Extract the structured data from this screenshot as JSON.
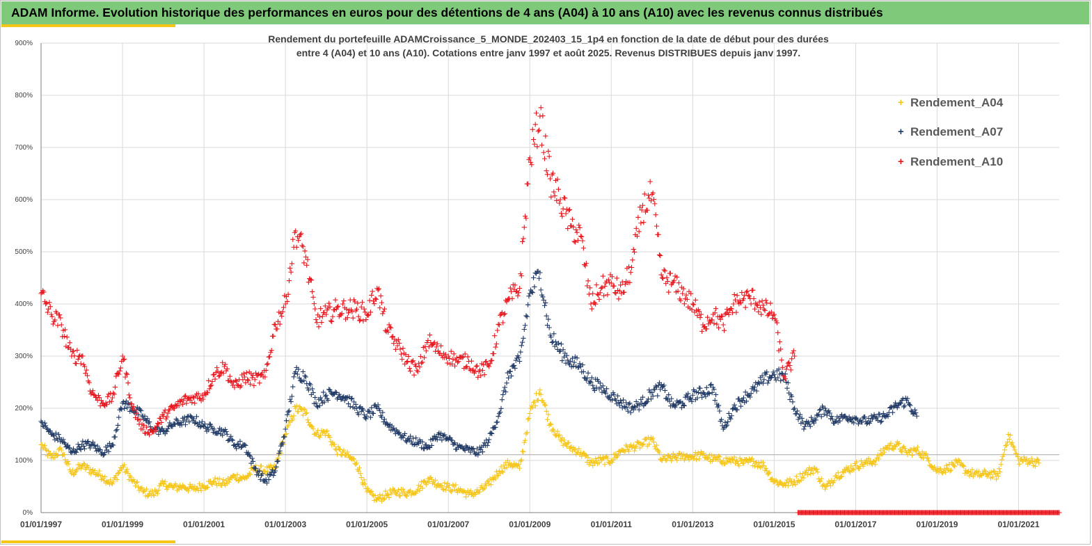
{
  "banner": {
    "text": "ADAM Informe. Evolution historique des performances en euros pour des détentions de 4 ans (A04) à 10 ans (A10) avec les revenus connus distribués"
  },
  "colors": {
    "banner_bg": "#7fc97a",
    "accent": "#f5c518",
    "A04": "#f5c518",
    "A07": "#1f3864",
    "A10": "#e8141c",
    "grid": "#d9d9d9"
  },
  "chart_data": {
    "type": "scatter",
    "title_lines": [
      "Rendement du portefeuille ADAMCroissance_5_MONDE_202403_15_1p4  en fonction de la date de début pour des durées",
      "entre 4 (A04) et 10 ans (A10). Cotations entre janv 1997 et août 2025. Revenus DISTRIBUES depuis janv 1997."
    ],
    "marker": "+",
    "xlim": [
      "1997-01-01",
      "2022-01-01"
    ],
    "x_ticks": [
      "01/01/1997",
      "01/01/1999",
      "01/01/2001",
      "01/01/2003",
      "01/01/2005",
      "01/01/2007",
      "01/01/2009",
      "01/01/2011",
      "01/01/2013",
      "01/01/2015",
      "01/01/2017",
      "01/01/2019",
      "01/01/2021"
    ],
    "ylim": [
      0,
      900
    ],
    "y_ticks": [
      "0%",
      "100%",
      "200%",
      "300%",
      "400%",
      "500%",
      "600%",
      "700%",
      "800%",
      "900%"
    ],
    "reference_line": 111,
    "legend_position": "top-right",
    "series": [
      {
        "name": "Rendement_A04",
        "x": [
          "1997-01",
          "1997-04",
          "1997-07",
          "1997-10",
          "1998-01",
          "1998-04",
          "1998-07",
          "1998-10",
          "1999-01",
          "1999-04",
          "1999-07",
          "1999-10",
          "2000-01",
          "2000-04",
          "2000-07",
          "2000-10",
          "2001-01",
          "2001-04",
          "2001-07",
          "2001-10",
          "2002-01",
          "2002-04",
          "2002-07",
          "2002-10",
          "2003-01",
          "2003-04",
          "2003-07",
          "2003-10",
          "2004-01",
          "2004-04",
          "2004-07",
          "2004-10",
          "2005-01",
          "2005-04",
          "2005-07",
          "2005-10",
          "2006-01",
          "2006-04",
          "2006-07",
          "2006-10",
          "2007-01",
          "2007-04",
          "2007-07",
          "2007-10",
          "2008-01",
          "2008-04",
          "2008-07",
          "2008-10",
          "2009-01",
          "2009-04",
          "2009-07",
          "2009-10",
          "2010-01",
          "2010-04",
          "2010-07",
          "2010-10",
          "2011-01",
          "2011-04",
          "2011-07",
          "2011-10",
          "2012-01",
          "2012-04",
          "2012-07",
          "2012-10",
          "2013-01",
          "2013-04",
          "2013-07",
          "2013-10",
          "2014-01",
          "2014-04",
          "2014-07",
          "2014-10",
          "2015-01",
          "2015-04",
          "2015-07",
          "2015-10",
          "2016-01",
          "2016-04",
          "2016-07",
          "2016-10",
          "2017-01",
          "2017-04",
          "2017-07",
          "2017-10",
          "2018-01",
          "2018-04",
          "2018-07",
          "2018-10",
          "2019-01",
          "2019-04",
          "2019-07",
          "2019-10",
          "2020-01",
          "2020-04",
          "2020-07",
          "2020-10",
          "2021-01",
          "2021-04",
          "2021-07"
        ],
        "values": [
          130,
          105,
          120,
          75,
          90,
          80,
          70,
          55,
          90,
          60,
          40,
          35,
          55,
          48,
          50,
          45,
          52,
          60,
          55,
          70,
          65,
          85,
          80,
          85,
          150,
          200,
          190,
          150,
          155,
          120,
          110,
          95,
          40,
          25,
          35,
          40,
          38,
          45,
          65,
          55,
          48,
          45,
          35,
          40,
          55,
          80,
          95,
          85,
          190,
          235,
          170,
          140,
          125,
          115,
          95,
          100,
          100,
          120,
          125,
          130,
          140,
          100,
          105,
          108,
          108,
          110,
          102,
          100,
          100,
          95,
          98,
          90,
          60,
          55,
          60,
          75,
          85,
          45,
          70,
          80,
          90,
          95,
          100,
          125,
          130,
          115,
          120,
          105,
          80,
          85,
          95,
          78,
          72,
          75,
          70,
          150,
          100,
          100,
          95
        ]
      },
      {
        "name": "Rendement_A07",
        "x": [
          "1997-01",
          "1997-04",
          "1997-07",
          "1997-10",
          "1998-01",
          "1998-04",
          "1998-07",
          "1998-10",
          "1999-01",
          "1999-04",
          "1999-07",
          "1999-10",
          "2000-01",
          "2000-04",
          "2000-07",
          "2000-10",
          "2001-01",
          "2001-04",
          "2001-07",
          "2001-10",
          "2002-01",
          "2002-04",
          "2002-07",
          "2002-10",
          "2003-01",
          "2003-04",
          "2003-07",
          "2003-10",
          "2004-01",
          "2004-04",
          "2004-07",
          "2004-10",
          "2005-01",
          "2005-04",
          "2005-07",
          "2005-10",
          "2006-01",
          "2006-04",
          "2006-07",
          "2006-10",
          "2007-01",
          "2007-04",
          "2007-07",
          "2007-10",
          "2008-01",
          "2008-04",
          "2008-07",
          "2008-10",
          "2009-01",
          "2009-04",
          "2009-07",
          "2009-10",
          "2010-01",
          "2010-04",
          "2010-07",
          "2010-10",
          "2011-01",
          "2011-04",
          "2011-07",
          "2011-10",
          "2012-01",
          "2012-04",
          "2012-07",
          "2012-10",
          "2013-01",
          "2013-04",
          "2013-07",
          "2013-10",
          "2014-01",
          "2014-04",
          "2014-07",
          "2014-10",
          "2015-01",
          "2015-04",
          "2015-07",
          "2015-10",
          "2016-01",
          "2016-04",
          "2016-07",
          "2016-10",
          "2017-01",
          "2017-04",
          "2017-07",
          "2017-10",
          "2018-01",
          "2018-04",
          "2018-07"
        ],
        "values": [
          175,
          150,
          140,
          115,
          130,
          130,
          115,
          130,
          210,
          200,
          185,
          160,
          155,
          170,
          175,
          180,
          165,
          160,
          155,
          130,
          130,
          85,
          60,
          80,
          160,
          270,
          260,
          210,
          225,
          230,
          220,
          200,
          185,
          200,
          170,
          155,
          140,
          135,
          125,
          150,
          140,
          125,
          120,
          115,
          140,
          190,
          270,
          290,
          420,
          460,
          340,
          310,
          290,
          280,
          250,
          240,
          225,
          210,
          200,
          210,
          230,
          240,
          205,
          210,
          225,
          230,
          240,
          160,
          200,
          220,
          235,
          255,
          265,
          260,
          200,
          165,
          180,
          200,
          175,
          185,
          180,
          175,
          180,
          185,
          205,
          215,
          185
        ]
      },
      {
        "name": "Rendement_A10",
        "x": [
          "1997-01",
          "1997-04",
          "1997-07",
          "1997-10",
          "1998-01",
          "1998-04",
          "1998-07",
          "1998-10",
          "1999-01",
          "1999-04",
          "1999-07",
          "1999-10",
          "2000-01",
          "2000-04",
          "2000-07",
          "2000-10",
          "2001-01",
          "2001-04",
          "2001-07",
          "2001-10",
          "2002-01",
          "2002-04",
          "2002-07",
          "2002-10",
          "2003-01",
          "2003-04",
          "2003-07",
          "2003-10",
          "2004-01",
          "2004-04",
          "2004-07",
          "2004-10",
          "2005-01",
          "2005-04",
          "2005-07",
          "2005-10",
          "2006-01",
          "2006-04",
          "2006-07",
          "2006-10",
          "2007-01",
          "2007-04",
          "2007-07",
          "2007-10",
          "2008-01",
          "2008-04",
          "2008-07",
          "2008-10",
          "2009-01",
          "2009-04",
          "2009-07",
          "2009-10",
          "2010-01",
          "2010-04",
          "2010-07",
          "2010-10",
          "2011-01",
          "2011-04",
          "2011-07",
          "2011-10",
          "2012-01",
          "2012-04",
          "2012-07",
          "2012-10",
          "2013-01",
          "2013-04",
          "2013-07",
          "2013-10",
          "2014-01",
          "2014-04",
          "2014-07",
          "2014-10",
          "2015-01",
          "2015-04",
          "2015-07"
        ],
        "values": [
          420,
          380,
          360,
          300,
          300,
          230,
          210,
          220,
          300,
          200,
          160,
          155,
          185,
          200,
          215,
          220,
          225,
          265,
          280,
          240,
          260,
          255,
          260,
          360,
          400,
          540,
          490,
          370,
          380,
          390,
          390,
          390,
          380,
          430,
          350,
          320,
          290,
          270,
          330,
          310,
          300,
          290,
          290,
          270,
          280,
          360,
          410,
          430,
          680,
          760,
          640,
          600,
          550,
          530,
          400,
          430,
          440,
          420,
          470,
          580,
          610,
          450,
          440,
          420,
          400,
          360,
          380,
          360,
          400,
          410,
          410,
          390,
          380,
          260,
          300
        ]
      }
    ],
    "baseline_series": {
      "name": "Rendement_A10",
      "x_start": "2015-08",
      "x_end": "2022-01",
      "value": 0
    }
  }
}
